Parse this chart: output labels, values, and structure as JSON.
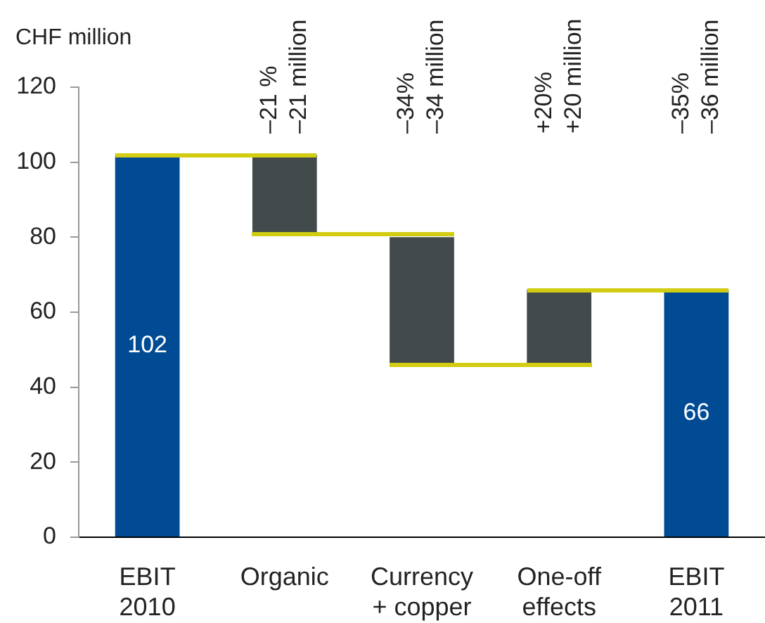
{
  "chart_data": {
    "type": "bar",
    "ylabel": "CHF million",
    "categories": [
      "EBIT\n2010",
      "Organic",
      "Currency\n+ copper",
      "One-off\neffects",
      "EBIT\n2011"
    ],
    "values": [
      102,
      -21,
      -34,
      20,
      66
    ],
    "base": [
      0,
      102,
      80,
      46,
      0
    ],
    "colors": [
      "#004b93",
      "#424a4b",
      "#424a4b",
      "#424a4b",
      "#004b93"
    ],
    "value_labels": [
      "102",
      null,
      null,
      null,
      "66"
    ],
    "annotations": [
      "–21 %\n–21 million",
      "–34%\n–34 million",
      "+20%\n+20 million",
      "–35%\n–36 million"
    ],
    "ylim": [
      0,
      120
    ],
    "yticks": [
      0,
      20,
      40,
      60,
      80,
      100,
      120
    ]
  }
}
